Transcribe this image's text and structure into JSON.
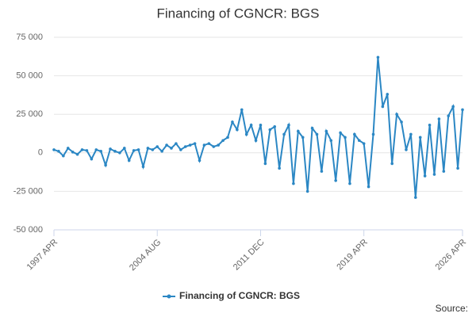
{
  "chart_data": {
    "type": "line",
    "title": "Financing of CGNCR: BGS",
    "categories": [
      "1997 APR",
      null,
      null,
      null,
      null,
      null,
      null,
      null,
      null,
      null,
      null,
      null,
      null,
      null,
      null,
      null,
      null,
      null,
      null,
      null,
      null,
      null,
      "2004 AUG",
      null,
      null,
      null,
      null,
      null,
      null,
      null,
      null,
      null,
      null,
      null,
      null,
      null,
      null,
      null,
      null,
      null,
      null,
      null,
      null,
      null,
      "2011 DEC",
      null,
      null,
      null,
      null,
      null,
      null,
      null,
      null,
      null,
      null,
      null,
      null,
      null,
      null,
      null,
      null,
      null,
      null,
      null,
      null,
      null,
      "2019 APR",
      null,
      null,
      null,
      null,
      null,
      null,
      null,
      null,
      null,
      null,
      null,
      null,
      null,
      null,
      null,
      null,
      null,
      null,
      null,
      null,
      "2026 APR"
    ],
    "series": [
      {
        "name": "Financing of CGNCR: BGS",
        "color": "#2b87c4",
        "values": [
          2000,
          1000,
          -2000,
          3000,
          500,
          -1000,
          2000,
          1500,
          -4000,
          2000,
          1000,
          -8000,
          2500,
          1000,
          0,
          3000,
          -5000,
          1500,
          2000,
          -9000,
          3000,
          2000,
          4000,
          1000,
          5000,
          3000,
          6000,
          2000,
          4000,
          5000,
          6000,
          -5000,
          5000,
          6000,
          4000,
          5000,
          8000,
          10000,
          20000,
          15000,
          28000,
          12000,
          18000,
          8000,
          18000,
          -7000,
          15000,
          17000,
          -10000,
          12000,
          18000,
          -20000,
          14000,
          10000,
          -25000,
          16000,
          12000,
          -12000,
          14000,
          8000,
          -18000,
          13000,
          10000,
          -20000,
          12000,
          8000,
          6000,
          -22000,
          12000,
          62000,
          30000,
          38000,
          -7000,
          25000,
          20000,
          2000,
          12000,
          -29000,
          10000,
          -15000,
          18000,
          -14000,
          22000,
          -12000,
          24000,
          30000,
          -10000,
          28000
        ]
      }
    ],
    "ylim": [
      -50000,
      75000
    ],
    "yticks": [
      {
        "value": -50000,
        "label": "-50 000"
      },
      {
        "value": -25000,
        "label": "-25 000"
      },
      {
        "value": 0,
        "label": "0"
      },
      {
        "value": 25000,
        "label": "25 000"
      },
      {
        "value": 50000,
        "label": "50 000"
      },
      {
        "value": 75000,
        "label": "75 000"
      }
    ],
    "grid": true,
    "legend": "bottom",
    "source": "Source:"
  }
}
